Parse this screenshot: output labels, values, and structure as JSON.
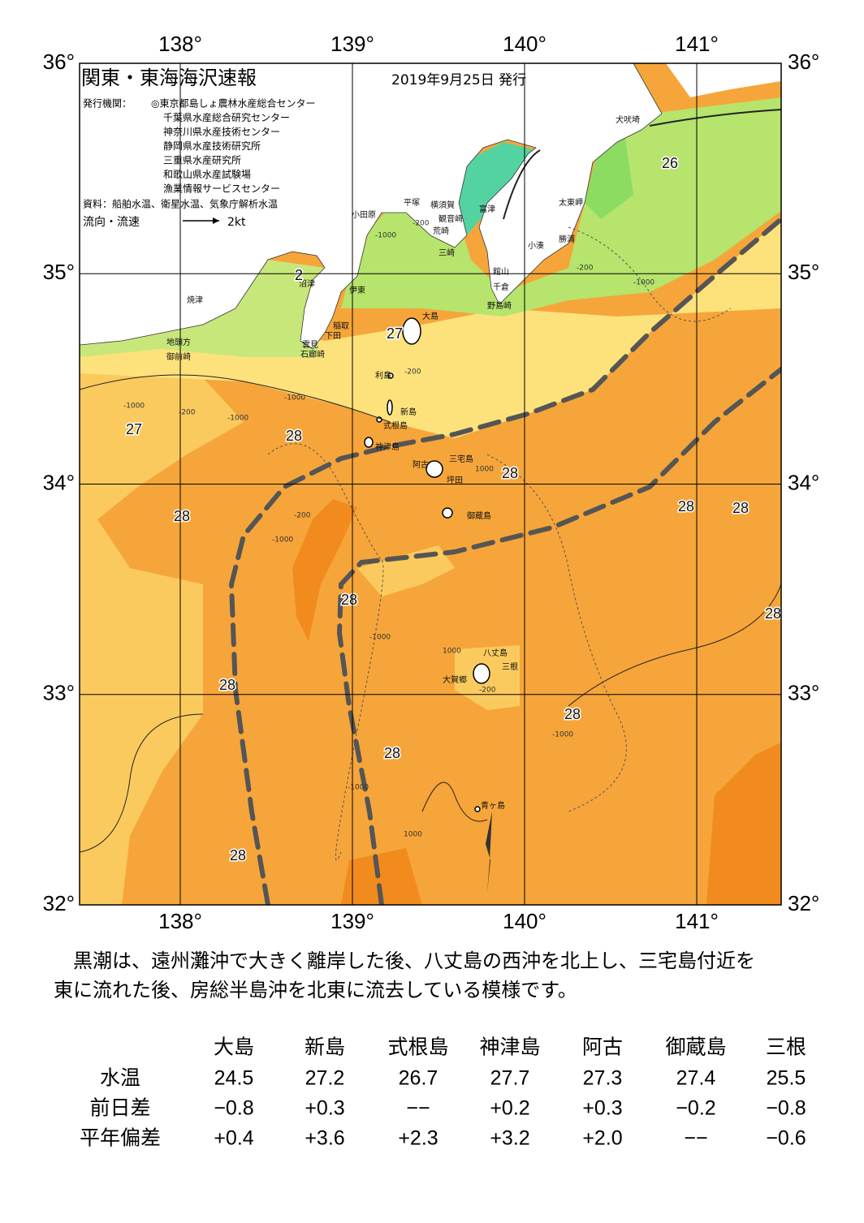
{
  "map": {
    "title": "関東・東海海沢速報",
    "date": "2019年9月25日 発行",
    "publisher_label": "発行機関：",
    "publishers": [
      "◎東京都島しょ農林水産総合センター",
      "千葉県水産総合研究センター",
      "神奈川県水産技術センター",
      "静岡県水産技術研究所",
      "三重県水産研究所",
      "和歌山県水産試験場",
      "漁業情報サービスセンター"
    ],
    "source": "資料：船舶水温、衛星水温、気象庁解析水温",
    "current_legend": "流向・流速",
    "current_scale": "2kt",
    "lon_ticks": [
      {
        "value": 138,
        "label": "138°"
      },
      {
        "value": 139,
        "label": "139°"
      },
      {
        "value": 140,
        "label": "140°"
      },
      {
        "value": 141,
        "label": "141°"
      }
    ],
    "lat_ticks": [
      {
        "value": 36,
        "label": "36°"
      },
      {
        "value": 35,
        "label": "35°"
      },
      {
        "value": 34,
        "label": "34°"
      },
      {
        "value": 33,
        "label": "33°"
      },
      {
        "value": 32,
        "label": "32°"
      }
    ],
    "places": [
      "犬吠埼",
      "太東岬",
      "勝浦",
      "小湊",
      "館山",
      "千倉",
      "野島崎",
      "富津",
      "平塚",
      "横須賀",
      "観音崎",
      "荒崎",
      "三崎",
      "小田原",
      "伊東",
      "沼津",
      "焼津",
      "稲取",
      "下田",
      "雲見",
      "石廊崎",
      "地頭方",
      "御前崎",
      "大島",
      "利島",
      "新島",
      "式根島",
      "神津島",
      "三宅島",
      "阿古",
      "坪田",
      "御蔵島",
      "八丈島",
      "三根",
      "大賀郷",
      "青ヶ島"
    ],
    "temperature_labels": [
      26,
      2,
      27,
      27,
      28,
      28,
      28,
      28,
      28,
      28,
      28,
      28,
      28,
      28,
      28
    ],
    "depth_labels": [
      "-1000",
      "-200",
      "-200",
      "-1000",
      "-1000",
      "-200",
      "-1000",
      "-1000",
      "-200",
      "-200",
      "-1000",
      "-1000",
      "1000",
      "-200",
      "-1000",
      "-1000",
      "1000",
      "1000"
    ]
  },
  "text": [
    "黒潮は、遠州灘沖で大きく離岸した後、八丈島の西沖を北上し、三宅島付近を",
    "東に流れた後、房総半島沖を北東に流去している模様です。"
  ],
  "table": {
    "columns": [
      "大島",
      "新島",
      "式根島",
      "神津島",
      "阿古",
      "御蔵島",
      "三根"
    ],
    "rows": [
      [
        "水温",
        "24.5",
        "27.2",
        "26.7",
        "27.7",
        "27.3",
        "27.4",
        "25.5"
      ],
      [
        "前日差",
        "−0.8",
        "+0.3",
        "−−",
        "+0.2",
        "+0.3",
        "−0.2",
        "−0.8"
      ],
      [
        "平年偏差",
        "+0.4",
        "+3.6",
        "+2.3",
        "+3.2",
        "+2.0",
        "−−",
        "−0.6"
      ]
    ]
  }
}
